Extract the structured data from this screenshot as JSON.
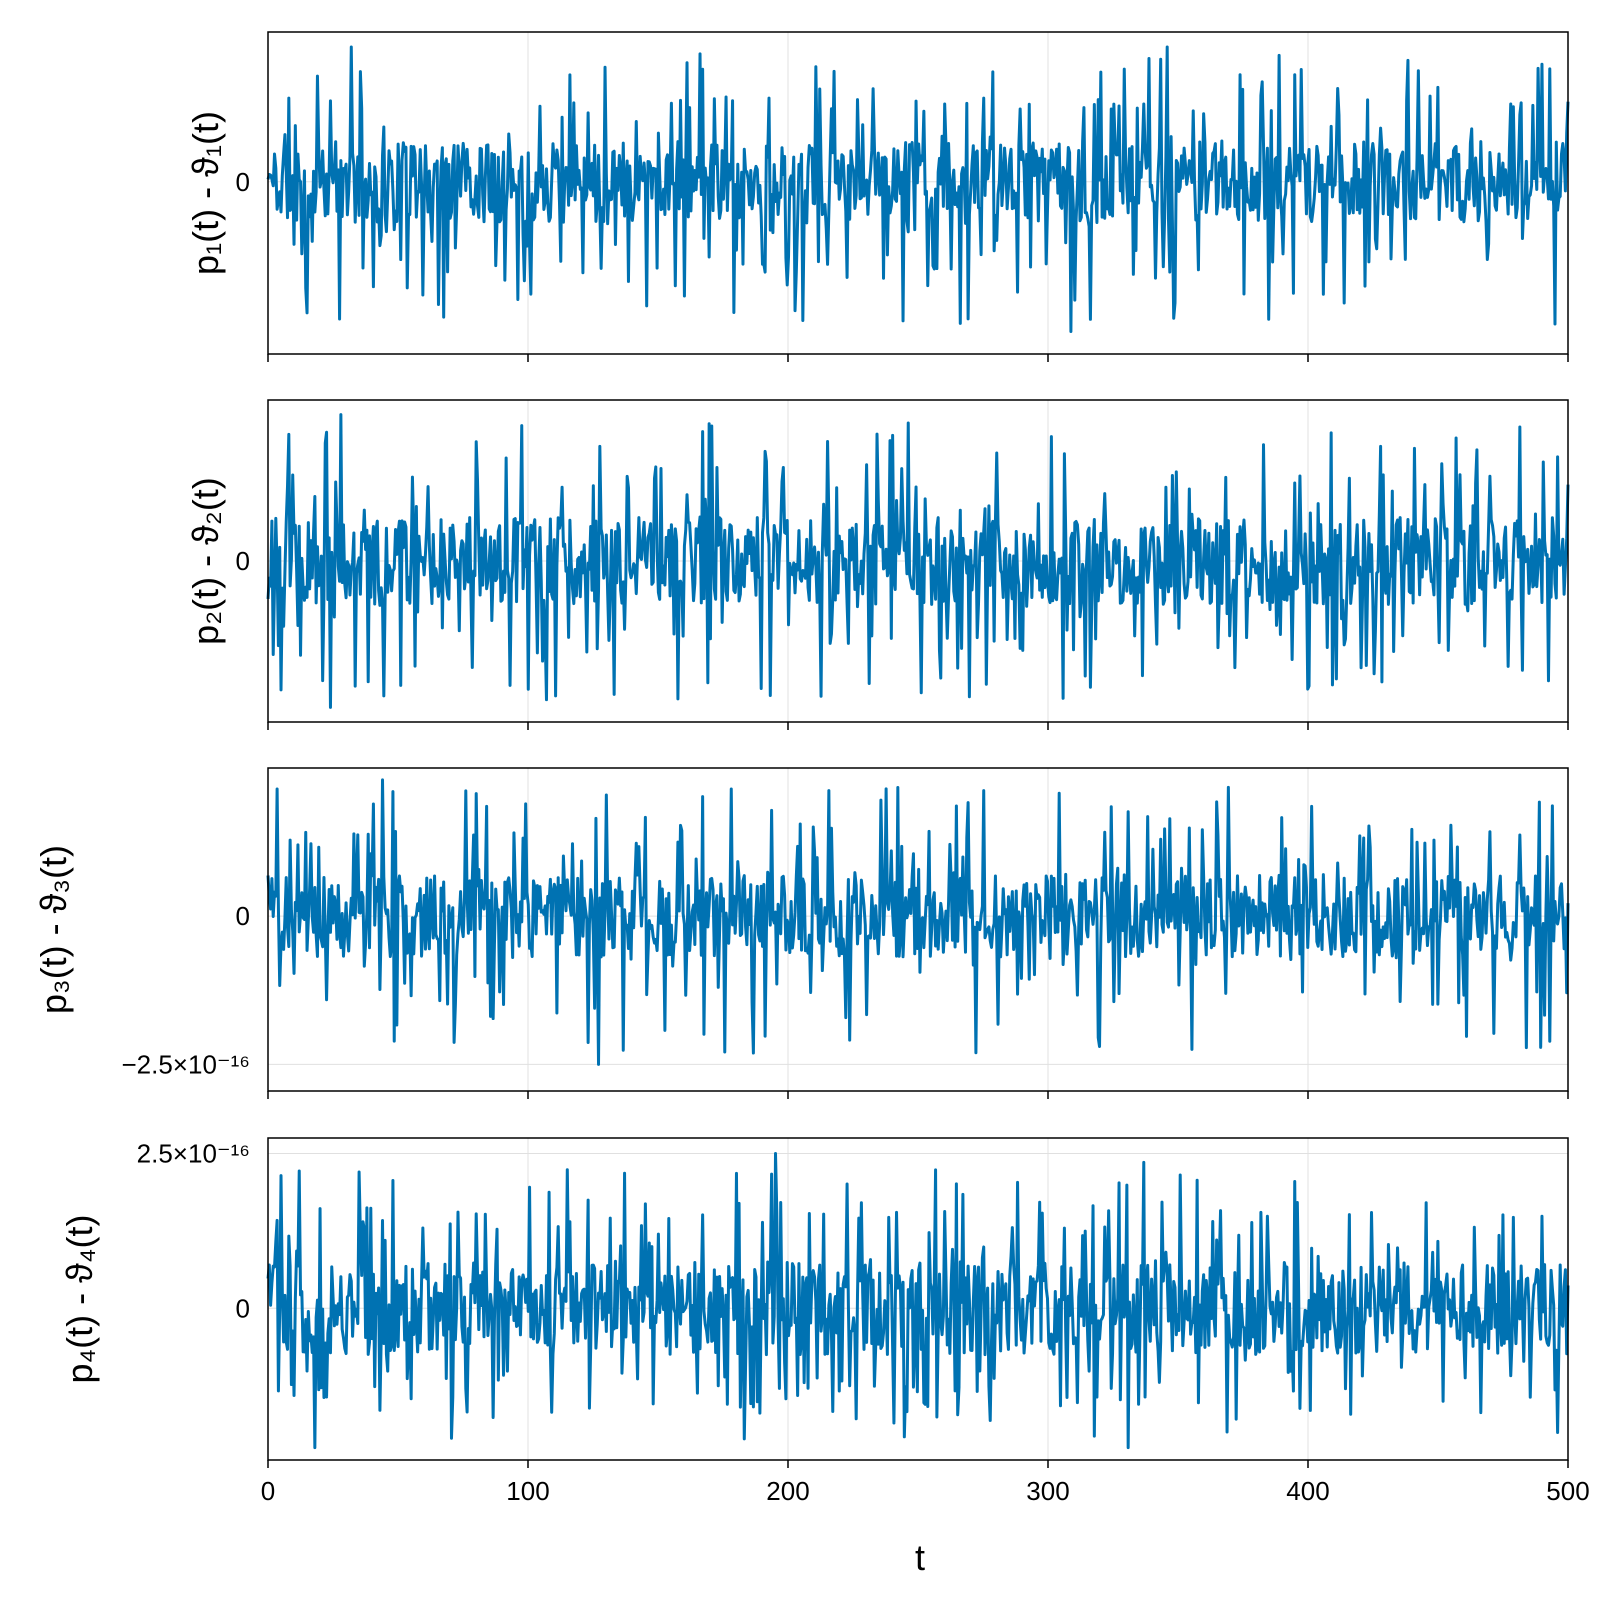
{
  "colors": {
    "series": "#0072b2",
    "grid": "#e0e0e0",
    "frame": "#000000",
    "background": "#ffffff"
  },
  "x_axis": {
    "label": "t",
    "ticks": [
      0,
      100,
      200,
      300,
      400,
      500
    ],
    "tick_labels": [
      "0",
      "100",
      "200",
      "300",
      "400",
      "500"
    ]
  },
  "chart_data": [
    {
      "type": "line",
      "ylabel": "p₁(t) - ϑ₁(t)",
      "xlim": [
        0,
        500
      ],
      "ylim": [
        -4.6e-16,
        4e-16
      ],
      "grid": true,
      "ytick_values": [
        0
      ],
      "ytick_labels": [
        "0"
      ],
      "series": [
        {
          "x_start": 0,
          "x_end": 500,
          "n_points": 1000,
          "seed": 11,
          "min": -4e-16,
          "max": 3.6e-16,
          "peaks": [
            [
              32,
              3.6e-16
            ],
            [
              346,
              3.6e-16
            ],
            [
              309,
              -4e-16
            ],
            [
              15,
              -3.5e-16
            ]
          ]
        }
      ]
    },
    {
      "type": "line",
      "ylabel": "p₂(t) - ϑ₂(t)",
      "xlim": [
        0,
        500
      ],
      "ylim": [
        -4.4e-16,
        4.4e-16
      ],
      "grid": true,
      "ytick_values": [
        0
      ],
      "ytick_labels": [
        "0"
      ],
      "series": [
        {
          "x_start": 0,
          "x_end": 500,
          "n_points": 1000,
          "seed": 23,
          "min": -4e-16,
          "max": 4e-16,
          "peaks": [
            [
              28,
              4e-16
            ],
            [
              24,
              -4e-16
            ],
            [
              51,
              -3.4e-16
            ],
            [
              400,
              -3.5e-16
            ],
            [
              409,
              3.5e-16
            ]
          ]
        }
      ]
    },
    {
      "type": "line",
      "ylabel": "p₃(t) - ϑ₃(t)",
      "xlim": [
        0,
        500
      ],
      "ylim": [
        -2.95e-16,
        2.5e-16
      ],
      "grid": true,
      "ytick_values": [
        0,
        -2.5e-16
      ],
      "ytick_labels": [
        "0",
        "−2.5×10⁻¹⁶"
      ],
      "series": [
        {
          "x_start": 0,
          "x_end": 500,
          "n_points": 1000,
          "seed": 37,
          "min": -2.5e-16,
          "max": 2.3e-16,
          "peaks": [
            [
              44,
              2.3e-16
            ],
            [
              127,
              -2.5e-16
            ],
            [
              320,
              -2.2e-16
            ]
          ]
        }
      ]
    },
    {
      "type": "line",
      "ylabel": "p₄(t) - ϑ₄(t)",
      "xlim": [
        0,
        500
      ],
      "ylim": [
        -2.45e-16,
        2.75e-16
      ],
      "grid": true,
      "ytick_values": [
        0,
        2.5e-16
      ],
      "ytick_labels": [
        "0",
        "2.5×10⁻¹⁶"
      ],
      "series": [
        {
          "x_start": 0,
          "x_end": 500,
          "n_points": 1000,
          "seed": 53,
          "min": -2.25e-16,
          "max": 2.5e-16,
          "peaks": [
            [
              195,
              2.5e-16
            ],
            [
              35,
              2.2e-16
            ],
            [
              18,
              -2.25e-16
            ],
            [
              331,
              -2.25e-16
            ]
          ]
        }
      ]
    }
  ]
}
